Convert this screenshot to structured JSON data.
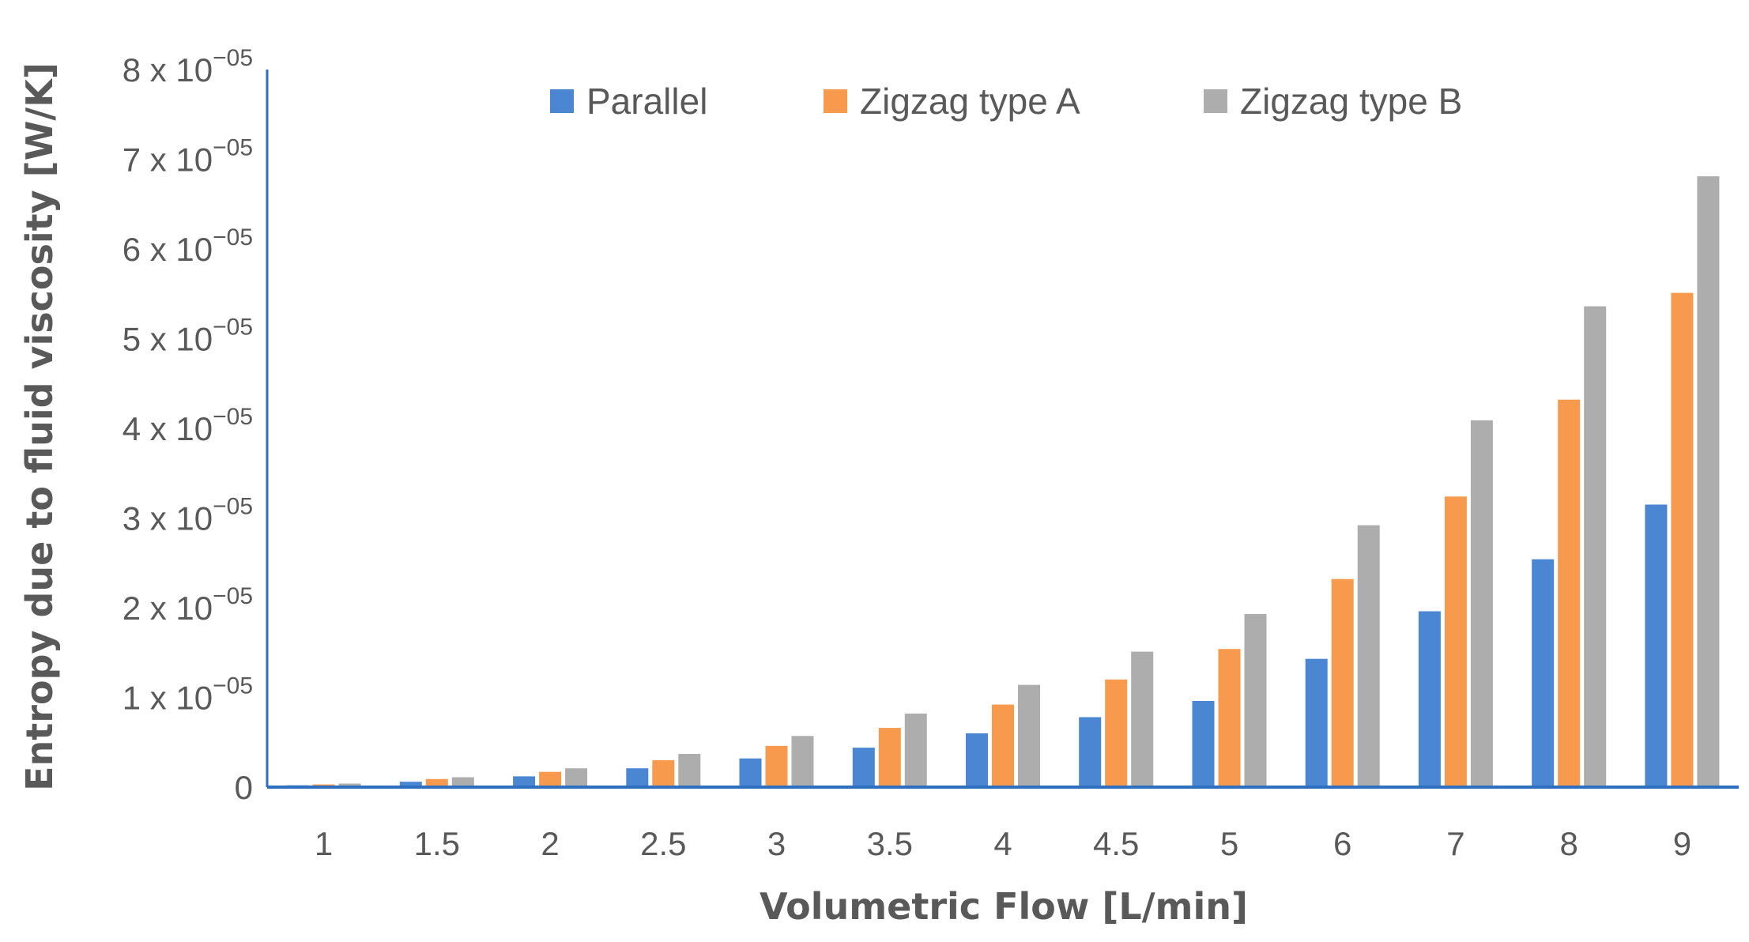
{
  "chart_data": {
    "type": "bar",
    "title": "",
    "xlabel": "Volumetric Flow [L/min]",
    "ylabel": "Entropy due to fluid viscosity [W/K]",
    "categories": [
      "1",
      "1.5",
      "2",
      "2.5",
      "3",
      "3.5",
      "4",
      "4.5",
      "5",
      "6",
      "7",
      "8",
      "9"
    ],
    "ylim": [
      0,
      8e-05
    ],
    "grid": false,
    "legend_position": "top",
    "y_ticks": [
      {
        "value": 0,
        "mantissa": "0",
        "exponent": ""
      },
      {
        "value": 1e-05,
        "mantissa": "1 x 10",
        "exponent": "−05"
      },
      {
        "value": 2e-05,
        "mantissa": "2 x 10",
        "exponent": "−05"
      },
      {
        "value": 3e-05,
        "mantissa": "3 x 10",
        "exponent": "−05"
      },
      {
        "value": 4e-05,
        "mantissa": "4 x 10",
        "exponent": "−05"
      },
      {
        "value": 5e-05,
        "mantissa": "5 x 10",
        "exponent": "−05"
      },
      {
        "value": 6e-05,
        "mantissa": "6 x 10",
        "exponent": "−05"
      },
      {
        "value": 7e-05,
        "mantissa": "7 x 10",
        "exponent": "−05"
      },
      {
        "value": 8e-05,
        "mantissa": "8 x 10",
        "exponent": "−05"
      }
    ],
    "series": [
      {
        "name": "Parallel",
        "color": "#4A86D2",
        "values": [
          2e-07,
          6e-07,
          1.2e-06,
          2.1e-06,
          3.2e-06,
          4.4e-06,
          6e-06,
          7.8e-06,
          9.6e-06,
          1.43e-05,
          1.96e-05,
          2.54e-05,
          3.15e-05
        ]
      },
      {
        "name": "Zigzag type A",
        "color": "#F79A4E",
        "values": [
          3e-07,
          9e-07,
          1.7e-06,
          3e-06,
          4.6e-06,
          6.6e-06,
          9.2e-06,
          1.2e-05,
          1.54e-05,
          2.32e-05,
          3.24e-05,
          4.32e-05,
          5.51e-05
        ]
      },
      {
        "name": "Zigzag type B",
        "color": "#ADADAD",
        "values": [
          4e-07,
          1.1e-06,
          2.1e-06,
          3.7e-06,
          5.7e-06,
          8.2e-06,
          1.14e-05,
          1.51e-05,
          1.93e-05,
          2.92e-05,
          4.09e-05,
          5.36e-05,
          6.81e-05
        ]
      }
    ]
  }
}
